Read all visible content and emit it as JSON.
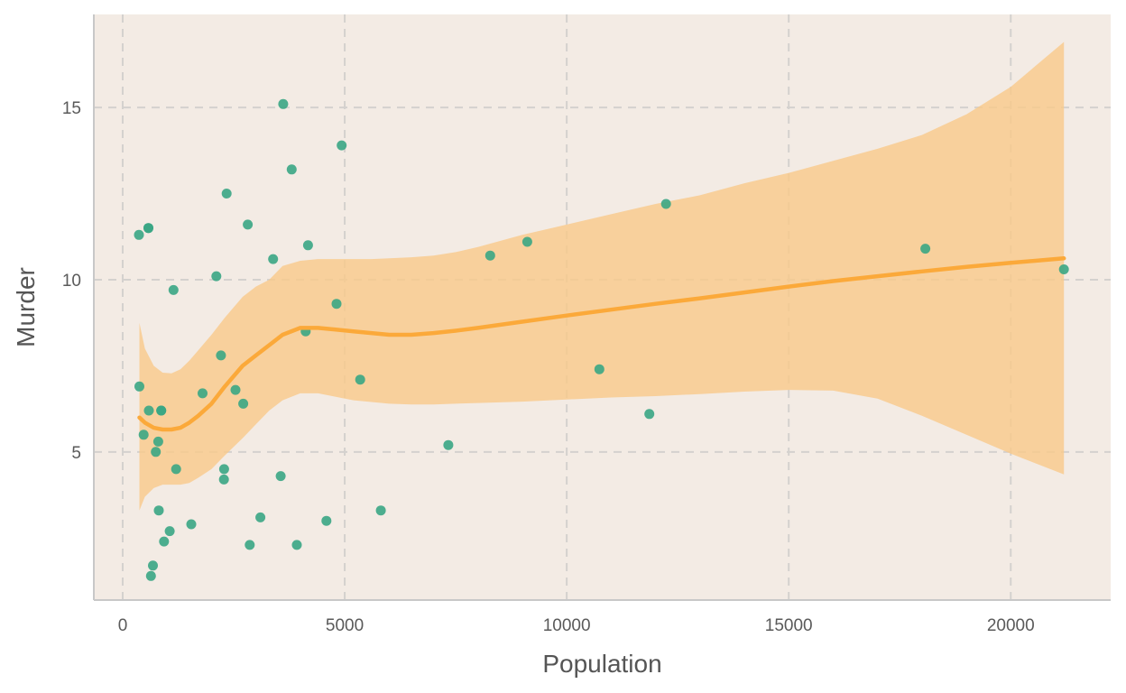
{
  "chart_data": {
    "type": "scatter",
    "title": "",
    "xlabel": "Population",
    "ylabel": "Murder",
    "xlim": [
      -650,
      22250
    ],
    "ylim": [
      0.7,
      17.7
    ],
    "xticks": [
      0,
      5000,
      10000,
      15000,
      20000
    ],
    "yticks": [
      5,
      10,
      15
    ],
    "grid": true,
    "grid_style": "dashed",
    "legend": "none",
    "colors": {
      "panel_background": "#f3ebe4",
      "grid": "#d4d1ce",
      "axis_line": "#c8c8c8",
      "points": "#3aa684",
      "smooth_line": "#fba93a",
      "confidence_band": "#f9c98a"
    },
    "series": [
      {
        "kind": "points",
        "x": [
          365,
          579,
          868,
          2110,
          4122,
          5348,
          12237,
          11860,
          21198,
          18076,
          10735,
          9111,
          8277,
          7333,
          5814,
          4931,
          4815,
          4589,
          4173,
          3921,
          3806,
          3615,
          3559,
          3387,
          3100,
          2861,
          2816,
          2715,
          2541,
          2341,
          2284,
          2280,
          2212,
          1799,
          1544,
          1203,
          1144,
          1058,
          931,
          868,
          812,
          800,
          746,
          681,
          637,
          590,
          579,
          472,
          376
        ],
        "y": [
          11.3,
          11.5,
          6.2,
          10.1,
          8.5,
          7.1,
          12.2,
          6.1,
          10.3,
          10.9,
          7.4,
          11.1,
          10.7,
          5.2,
          3.3,
          13.9,
          9.3,
          3.0,
          11.0,
          2.3,
          13.2,
          15.1,
          4.3,
          10.6,
          3.1,
          2.3,
          11.6,
          6.4,
          6.8,
          12.5,
          4.5,
          4.2,
          7.8,
          6.7,
          2.9,
          4.5,
          9.7,
          2.7,
          2.4,
          6.2,
          3.3,
          5.3,
          5.0,
          1.7,
          1.4,
          6.2,
          11.5,
          5.5,
          6.9
        ]
      },
      {
        "kind": "smooth",
        "x": [
          376,
          500,
          700,
          900,
          1100,
          1300,
          1500,
          1700,
          2000,
          2300,
          2700,
          3000,
          3300,
          3600,
          4000,
          4400,
          4800,
          5200,
          5600,
          6000,
          6500,
          7000,
          7500,
          8000,
          9000,
          10000,
          11000,
          12000,
          13000,
          14000,
          15000,
          16000,
          17000,
          18000,
          19000,
          20000,
          21198
        ],
        "y": [
          6.0,
          5.85,
          5.7,
          5.65,
          5.65,
          5.7,
          5.85,
          6.05,
          6.4,
          6.9,
          7.5,
          7.8,
          8.1,
          8.4,
          8.6,
          8.6,
          8.55,
          8.5,
          8.45,
          8.4,
          8.4,
          8.45,
          8.52,
          8.6,
          8.78,
          8.96,
          9.13,
          9.3,
          9.46,
          9.63,
          9.8,
          9.96,
          10.1,
          10.24,
          10.37,
          10.49,
          10.62
        ],
        "lower": [
          3.3,
          3.7,
          3.95,
          4.05,
          4.05,
          4.05,
          4.1,
          4.25,
          4.5,
          4.9,
          5.4,
          5.8,
          6.2,
          6.5,
          6.7,
          6.7,
          6.6,
          6.5,
          6.45,
          6.4,
          6.38,
          6.38,
          6.4,
          6.42,
          6.46,
          6.52,
          6.58,
          6.62,
          6.68,
          6.75,
          6.8,
          6.78,
          6.55,
          6.05,
          5.5,
          4.95,
          4.35
        ],
        "upper": [
          8.75,
          8.0,
          7.5,
          7.3,
          7.28,
          7.4,
          7.65,
          7.95,
          8.4,
          8.9,
          9.5,
          9.8,
          10.0,
          10.4,
          10.55,
          10.6,
          10.6,
          10.6,
          10.6,
          10.62,
          10.65,
          10.7,
          10.8,
          10.95,
          11.3,
          11.6,
          11.9,
          12.2,
          12.45,
          12.8,
          13.1,
          13.45,
          13.8,
          14.2,
          14.8,
          15.6,
          16.9
        ]
      }
    ]
  }
}
